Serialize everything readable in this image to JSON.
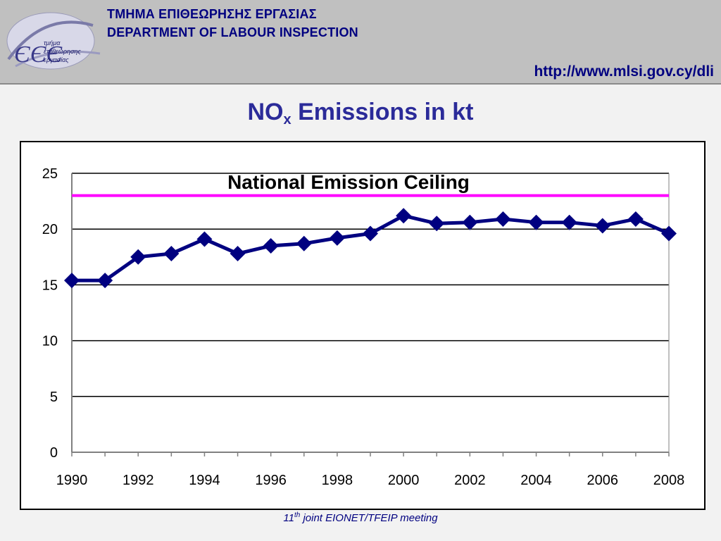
{
  "header": {
    "dept_greek": "ΤΜΗΜΑ ΕΠΙΘΕΩΡΗΣΗΣ ΕΡΓΑΣΙΑΣ",
    "dept_english": "DEPARTMENT OF LABOUR INSPECTION",
    "url": "http://www.mlsi.gov.cy/dli",
    "logo_lines": [
      "τμήμα",
      "επιθεώρησης",
      "εργασίας"
    ]
  },
  "slide_title": {
    "prefix": "NO",
    "subscript": "x",
    "suffix": " Emissions in kt"
  },
  "footer": {
    "number": "11",
    "superscript": "th",
    "rest": " joint EIONET/TFEIP meeting"
  },
  "colors": {
    "series_line": "#000080",
    "ceiling_line": "#ff00ff",
    "title": "#2b2b99",
    "header_text": "#000080",
    "header_bg": "#c0c0c0"
  },
  "chart_data": {
    "type": "line",
    "x": [
      1990,
      1991,
      1992,
      1993,
      1994,
      1995,
      1996,
      1997,
      1998,
      1999,
      2000,
      2001,
      2002,
      2003,
      2004,
      2005,
      2006,
      2007,
      2008
    ],
    "series": [
      {
        "values": [
          15.4,
          15.4,
          17.5,
          17.8,
          19.1,
          17.8,
          18.5,
          18.7,
          19.2,
          19.6,
          21.2,
          20.5,
          20.6,
          20.9,
          20.6,
          20.6,
          20.3,
          20.9,
          19.6
        ]
      }
    ],
    "reference_line": {
      "label": "National Emission Ceiling",
      "value": 23
    },
    "ylim": [
      0,
      25
    ],
    "yticks": [
      0,
      5,
      10,
      15,
      20,
      25
    ],
    "xlim": [
      1990,
      2008
    ],
    "xticks": [
      1990,
      1992,
      1994,
      1996,
      1998,
      2000,
      2002,
      2004,
      2006,
      2008
    ],
    "grid": "horizontal",
    "legend": "none"
  }
}
